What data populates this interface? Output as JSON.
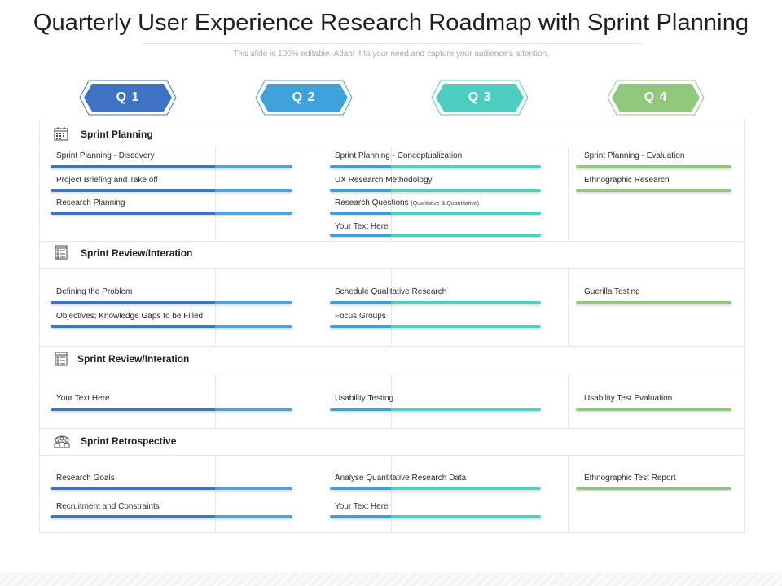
{
  "title": "Quarterly User Experience Research Roadmap with Sprint Planning",
  "subtitle": "This slide is 100% editable. Adapt it to your need and capture your audience’s attention.",
  "colors": {
    "q1": "#3e73c4",
    "q2": "#3fa0da",
    "q3": "#4ccdbd",
    "q4": "#8fc77b"
  },
  "quarters": [
    {
      "label": "Q 1",
      "color": "#3e73c4"
    },
    {
      "label": "Q 2",
      "color": "#3fa0da"
    },
    {
      "label": "Q 3",
      "color": "#4ccdbd"
    },
    {
      "label": "Q 4",
      "color": "#8fc77b"
    }
  ],
  "sections": [
    {
      "title": "Sprint Planning",
      "icon": "calendar-icon",
      "col1": [
        "Sprint Planning - Discovery",
        "Project Briefing and Take off",
        "Research Planning"
      ],
      "col2": [
        "Sprint Planning - Conceptualization",
        "UX Research Methodology",
        "Research Questions",
        "Your Text Here"
      ],
      "col2_note": "(Qualitative & Quantitative)",
      "col3": [
        "Sprint Planning - Evaluation",
        "Ethnographic Research"
      ]
    },
    {
      "title": "Sprint Review/Interation",
      "icon": "checklist-icon",
      "col1": [
        "Defining the Problem",
        "Objectives; Knowledge Gaps to be Filled"
      ],
      "col2": [
        "Schedule Qualitative Research",
        "Focus Groups"
      ],
      "col3": [
        "Guerilla Testing"
      ]
    },
    {
      "title": "Sprint Review/Interation",
      "icon": "checklist-icon",
      "col1": [
        "Your Text Here"
      ],
      "col2": [
        "Usability Testing"
      ],
      "col3": [
        "Usability Test Evaluation"
      ]
    },
    {
      "title": "Sprint Retrospective",
      "icon": "team-meeting-icon",
      "col1": [
        "Research Goals",
        "Recruitment and Constraints"
      ],
      "col2": [
        "Analyse Quantitative Research Data",
        "Your Text Here"
      ],
      "col3": [
        "Ethnographic Test Report"
      ]
    }
  ]
}
